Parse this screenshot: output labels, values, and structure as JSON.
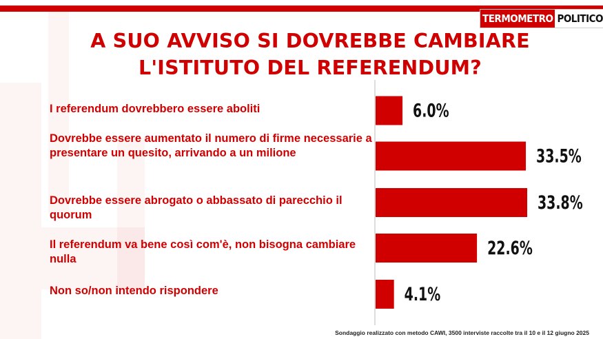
{
  "brand": {
    "part1": "TERMOMETRO",
    "part2": "POLITICO"
  },
  "colors": {
    "accent": "#d10000",
    "bar": "#d10000",
    "value_text": "#111111",
    "axis": "#bbbbbb"
  },
  "footnote": "Sondaggio realizzato con metodo CAWI, 3500 interviste raccolte tra il 10 e il 12 giugno 2025",
  "chart_data": {
    "type": "bar",
    "orientation": "horizontal",
    "title": [
      "A SUO AVVISO SI DOVREBBE CAMBIARE",
      "L'ISTITUTO DEL REFERENDUM?"
    ],
    "categories": [
      "I referendum dovrebbero essere aboliti",
      "Dovrebbe essere aumentato il numero di firme necessarie a presentare un quesito, arrivando a un milione",
      "Dovrebbe essere abrogato o abbassato di parecchio il quorum",
      "Il referendum va bene così com'è, non bisogna cambiare nulla",
      "Non so/non intendo rispondere"
    ],
    "values": [
      6.0,
      33.5,
      33.8,
      22.6,
      4.1
    ],
    "value_labels": [
      "6.0%",
      "33.5%",
      "33.8%",
      "22.6%",
      "4.1%"
    ],
    "unit": "%",
    "xlim": [
      0,
      33.8
    ],
    "grid": false,
    "legend": "none"
  }
}
